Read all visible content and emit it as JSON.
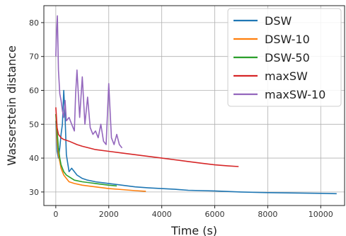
{
  "chart_data": {
    "type": "line",
    "title": "",
    "xlabel": "Time (s)",
    "ylabel": "Wasserstein distance",
    "xlim": [
      -450,
      10900
    ],
    "ylim": [
      26,
      85
    ],
    "xticks": [
      0,
      2000,
      4000,
      6000,
      8000,
      10000
    ],
    "xtick_labels": [
      "0",
      "2000",
      "4000",
      "6000",
      "8000",
      "10000"
    ],
    "yticks": [
      30,
      40,
      50,
      60,
      70,
      80
    ],
    "ytick_labels": [
      "30",
      "40",
      "50",
      "60",
      "70",
      "80"
    ],
    "grid": true,
    "legend_position": "top-right",
    "series": [
      {
        "name": "DSW",
        "color": "#1f77b4",
        "x": [
          0,
          50,
          100,
          150,
          200,
          250,
          300,
          350,
          400,
          500,
          600,
          800,
          1000,
          1200,
          1500,
          2000,
          2500,
          3000,
          3500,
          4000,
          4500,
          5000,
          6000,
          7000,
          8000,
          9000,
          10000,
          10600
        ],
        "y": [
          51,
          42,
          40,
          43,
          47,
          50,
          60,
          52,
          41,
          36,
          37,
          35,
          34,
          33.5,
          33,
          32.5,
          32,
          31.5,
          31.2,
          31,
          30.8,
          30.5,
          30.3,
          30,
          29.8,
          29.7,
          29.6,
          29.5
        ]
      },
      {
        "name": "DSW-10",
        "color": "#ff7f0e",
        "x": [
          0,
          50,
          100,
          150,
          200,
          300,
          400,
          500,
          700,
          1000,
          1500,
          2000,
          2500,
          3000,
          3400
        ],
        "y": [
          53,
          45,
          41,
          39,
          37,
          35,
          34,
          33,
          32.5,
          32,
          31.5,
          31,
          30.7,
          30.4,
          30.2
        ]
      },
      {
        "name": "DSW-50",
        "color": "#2ca02c",
        "x": [
          0,
          50,
          100,
          150,
          200,
          300,
          400,
          500,
          700,
          1000,
          1500,
          2000,
          2300
        ],
        "y": [
          53,
          48,
          43,
          40,
          38,
          36,
          35,
          34.5,
          33.5,
          33,
          32.5,
          32,
          31.8
        ]
      },
      {
        "name": "maxSW",
        "color": "#d62728",
        "x": [
          0,
          50,
          100,
          200,
          300,
          500,
          800,
          1000,
          1500,
          2000,
          2500,
          3000,
          3500,
          4000,
          4500,
          5000,
          5500,
          6000,
          6500,
          6900
        ],
        "y": [
          55,
          49,
          47,
          46,
          45.5,
          45,
          44,
          43.5,
          42.5,
          42,
          41.5,
          41,
          40.5,
          40,
          39.5,
          39,
          38.5,
          38,
          37.7,
          37.5
        ]
      },
      {
        "name": "maxSW-10",
        "color": "#9467bd",
        "x": [
          0,
          30,
          60,
          100,
          150,
          200,
          250,
          300,
          350,
          400,
          500,
          600,
          700,
          750,
          800,
          900,
          1000,
          1100,
          1200,
          1300,
          1400,
          1500,
          1600,
          1700,
          1800,
          1900,
          2000,
          2100,
          2200,
          2300,
          2400,
          2500
        ],
        "y": [
          70,
          78,
          82,
          66,
          59,
          57,
          54,
          52,
          57,
          51,
          52,
          50,
          48,
          59,
          66,
          52,
          64,
          50,
          58,
          49,
          47,
          48,
          46,
          50,
          45,
          44,
          62,
          46,
          44,
          47,
          44,
          43
        ]
      }
    ]
  }
}
